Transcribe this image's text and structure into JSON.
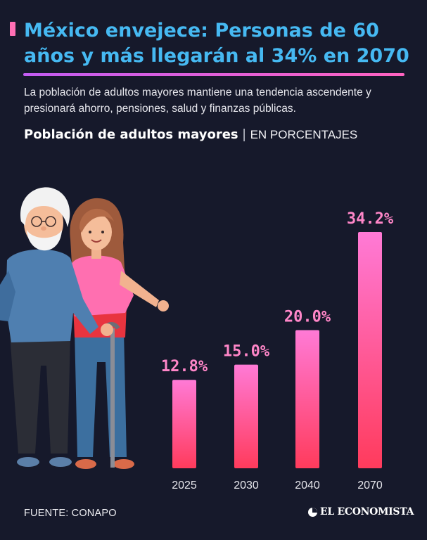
{
  "header": {
    "title": "México envejece: Personas de 60 años y más llegarán al 34% en 2070",
    "subtitle": "La población de adultos mayores mantiene una tendencia ascendente y presionará ahorro, pensiones, salud y finanzas públicas.",
    "chart_heading": "Población de adultos mayores",
    "chart_heading_separator": "|",
    "chart_unit": "EN PORCENTAJES"
  },
  "footer": {
    "source": "FUENTE: CONAPO",
    "brand": "EL ECONOMISTA"
  },
  "colors": {
    "background": "#16192b",
    "title": "#46b9f2",
    "bar_top": "#ff7ad6",
    "bar_bottom": "#ff3b5c",
    "value_label": "#ff86c8"
  },
  "chart_data": {
    "type": "bar",
    "categories": [
      "2025",
      "2030",
      "2040",
      "2070"
    ],
    "values": [
      12.8,
      15.0,
      20.0,
      34.2
    ],
    "value_labels": [
      "12.8%",
      "15.0%",
      "20.0%",
      "34.2%"
    ],
    "title": "Población de adultos mayores",
    "subtitle": "EN PORCENTAJES",
    "xlabel": "",
    "ylabel": "",
    "ylim": [
      0,
      34.2
    ],
    "grid": false,
    "legend": "none"
  }
}
